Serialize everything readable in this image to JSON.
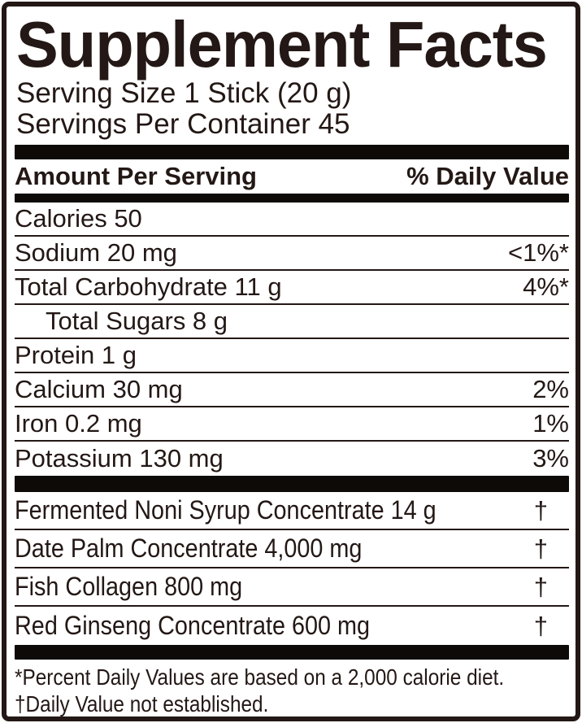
{
  "label": {
    "title": "Supplement Facts",
    "serving_size": "Serving Size 1 Stick (20 g)",
    "servings_per_container": "Servings Per Container 45",
    "header": {
      "amount": "Amount Per Serving",
      "daily_value": "% Daily Value"
    },
    "nutrients": [
      {
        "name": "Calories 50",
        "dv": "",
        "indent": false
      },
      {
        "name": "Sodium 20 mg",
        "dv": "<1%*",
        "indent": false
      },
      {
        "name": "Total Carbohydrate 11 g",
        "dv": "4%*",
        "indent": false
      },
      {
        "name": "Total Sugars 8 g",
        "dv": "",
        "indent": true
      },
      {
        "name": "Protein 1 g",
        "dv": "",
        "indent": false
      },
      {
        "name": "Calcium 30 mg",
        "dv": "2%",
        "indent": false
      },
      {
        "name": "Iron 0.2 mg",
        "dv": "1%",
        "indent": false
      },
      {
        "name": "Potassium 130 mg",
        "dv": "3%",
        "indent": false
      }
    ],
    "ingredients": [
      {
        "name": "Fermented Noni Syrup Concentrate 14 g",
        "dv": "†"
      },
      {
        "name": "Date Palm Concentrate 4,000 mg",
        "dv": "†"
      },
      {
        "name": "Fish Collagen 800 mg",
        "dv": "†"
      },
      {
        "name": "Red Ginseng Concentrate 600 mg",
        "dv": "†"
      }
    ],
    "footnotes": [
      "*Percent Daily Values are based on a 2,000 calorie diet.",
      "†Daily Value not established."
    ],
    "colors": {
      "ink": "#231815",
      "background": "#ffffff"
    }
  }
}
